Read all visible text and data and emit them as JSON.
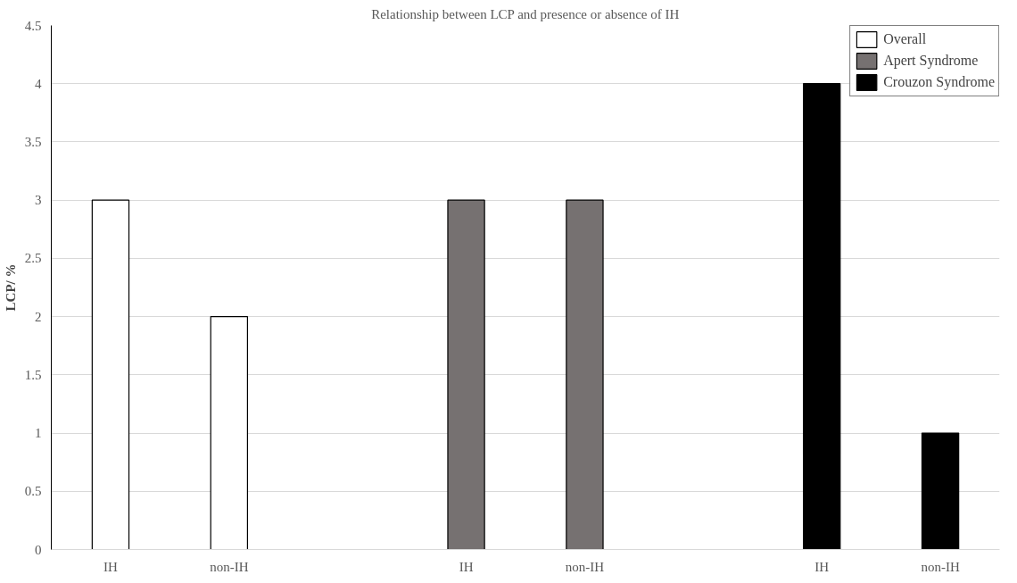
{
  "chart_data": {
    "type": "bar",
    "title": "Relationship between LCP and presence or absence of IH",
    "ylabel": "LCP/ %",
    "categories": [
      "IH",
      "non-IH",
      null,
      "IH",
      "non-IH",
      null,
      "IH",
      "non-IH"
    ],
    "series": [
      {
        "name": "Overall",
        "color": "#ffffff",
        "values": [
          3,
          2,
          null,
          null,
          null,
          null,
          null,
          null
        ]
      },
      {
        "name": "Apert Syndrome",
        "color": "#767171",
        "values": [
          null,
          null,
          null,
          3,
          3,
          null,
          null,
          null
        ]
      },
      {
        "name": "Crouzon Syndrome",
        "color": "#000000",
        "values": [
          null,
          null,
          null,
          null,
          null,
          null,
          4,
          1
        ]
      }
    ],
    "ylim": [
      0,
      4.5
    ],
    "yticks": [
      0,
      0.5,
      1,
      1.5,
      2,
      2.5,
      3,
      3.5,
      4,
      4.5
    ],
    "grid": "y",
    "legend": "top right"
  }
}
